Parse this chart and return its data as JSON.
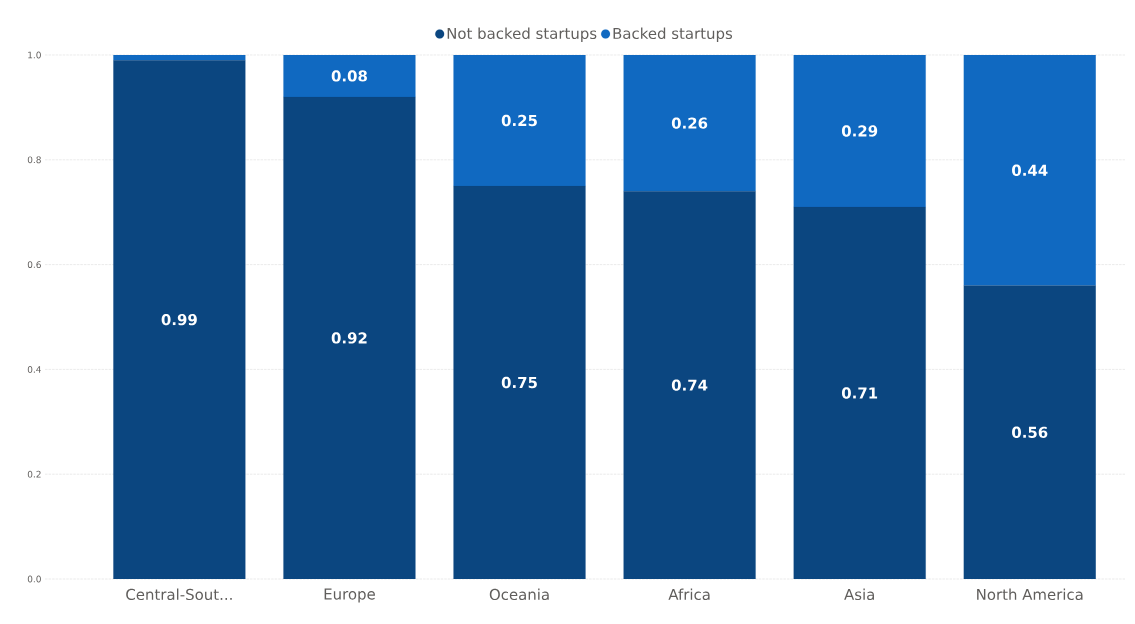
{
  "chart_data": {
    "type": "bar",
    "stacked": true,
    "categories": [
      "Central-Sout...",
      "Europe",
      "Oceania",
      "Africa",
      "Asia",
      "North America"
    ],
    "series": [
      {
        "name": "Not backed startups",
        "color": "#0b4680",
        "values": [
          0.99,
          0.92,
          0.75,
          0.74,
          0.71,
          0.56
        ],
        "value_labels": [
          "0.99",
          "0.92",
          "0.75",
          "0.74",
          "0.71",
          "0.56"
        ]
      },
      {
        "name": "Backed startups",
        "color": "#1069c1",
        "values": [
          0.01,
          0.08,
          0.25,
          0.26,
          0.29,
          0.44
        ],
        "value_labels": [
          null,
          "0.08",
          "0.25",
          "0.26",
          "0.29",
          "0.44"
        ]
      }
    ],
    "ylim": [
      0,
      1
    ],
    "yticks": [
      {
        "value": 0,
        "label": "0.0"
      },
      {
        "value": 0.2,
        "label": "0.2"
      },
      {
        "value": 0.4,
        "label": "0.4"
      },
      {
        "value": 0.6,
        "label": "0.6"
      },
      {
        "value": 0.8,
        "label": "0.8"
      },
      {
        "value": 1,
        "label": "1.0"
      }
    ],
    "grid": "y",
    "legend": "top"
  }
}
